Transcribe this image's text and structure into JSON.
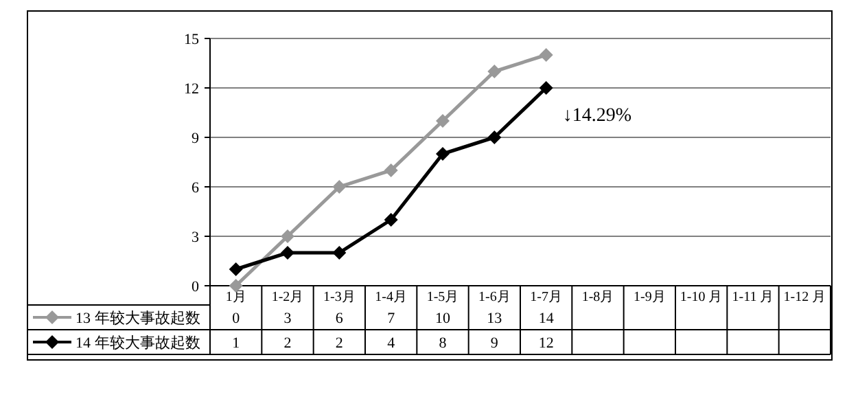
{
  "chart_data": {
    "type": "line",
    "categories": [
      "1月",
      "1-2月",
      "1-3月",
      "1-4月",
      "1-5月",
      "1-6月",
      "1-7月",
      "1-8月",
      "1-9月",
      "1-10 月",
      "1-11 月",
      "1-12 月"
    ],
    "series": [
      {
        "name": "13 年较大事故起数",
        "color": "#999999",
        "values": [
          0,
          3,
          6,
          7,
          10,
          13,
          14,
          null,
          null,
          null,
          null,
          null
        ]
      },
      {
        "name": "14 年较大事故起数",
        "color": "#000000",
        "values": [
          1,
          2,
          2,
          4,
          8,
          9,
          12,
          null,
          null,
          null,
          null,
          null
        ]
      }
    ],
    "ylim": [
      0,
      15
    ],
    "yticks": [
      0,
      3,
      6,
      9,
      12,
      15
    ],
    "grid": "y",
    "legend": "bottom",
    "data_labels": true,
    "marker": "diamond",
    "line_style": "solid",
    "annotations": [
      {
        "text": "↓14.29%",
        "x": "1-7月",
        "y": 12
      }
    ]
  }
}
